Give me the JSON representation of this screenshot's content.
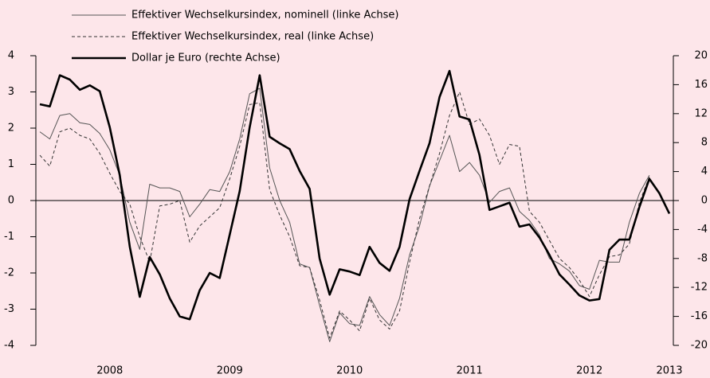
{
  "chart_data": {
    "type": "line",
    "categories": [
      null,
      null,
      null,
      null,
      null,
      null,
      null,
      "2008",
      null,
      null,
      null,
      null,
      null,
      null,
      null,
      null,
      null,
      null,
      null,
      "2009",
      null,
      null,
      null,
      null,
      null,
      null,
      null,
      null,
      null,
      null,
      null,
      "2010",
      null,
      null,
      null,
      null,
      null,
      null,
      null,
      null,
      null,
      null,
      null,
      "2011",
      null,
      null,
      null,
      null,
      null,
      null,
      null,
      null,
      null,
      null,
      null,
      "2012",
      null,
      null,
      null,
      null,
      null,
      null,
      null,
      "2013"
    ],
    "series": [
      {
        "name": "Effektiver Wechselkursindex,  nominell (linke Achse)",
        "color": "#555555",
        "linestyle": "solid",
        "linewidth": 1,
        "axis": "y",
        "values": [
          1.9,
          1.7,
          2.35,
          2.4,
          2.15,
          2.1,
          1.85,
          1.4,
          0.7,
          -0.6,
          -1.35,
          0.45,
          0.35,
          0.35,
          0.25,
          -0.45,
          -0.1,
          0.3,
          0.25,
          0.8,
          1.7,
          2.95,
          3.1,
          0.9,
          0.0,
          -0.6,
          -1.75,
          -1.85,
          -2.9,
          -3.9,
          -3.1,
          -3.4,
          -3.45,
          -2.65,
          -3.15,
          -3.45,
          -2.7,
          -1.5,
          -0.7,
          0.4,
          1.1,
          1.8,
          0.8,
          1.05,
          0.7,
          -0.05,
          0.25,
          0.35,
          -0.3,
          -0.55,
          -0.95,
          -1.6,
          -1.75,
          -1.95,
          -2.35,
          -2.45,
          -1.65,
          -1.7,
          -1.7,
          -0.6,
          0.2,
          0.7,
          null,
          null
        ]
      },
      {
        "name": "Effektiver Wechselkursindex,  real (linke Achse)",
        "color": "#333333",
        "linestyle": "dashed",
        "linewidth": 1,
        "axis": "y",
        "values": [
          1.25,
          0.95,
          1.9,
          2.0,
          1.8,
          1.7,
          1.3,
          0.75,
          0.25,
          -0.1,
          -1.0,
          -1.7,
          -0.15,
          -0.1,
          0.0,
          -1.15,
          -0.7,
          -0.45,
          -0.2,
          0.6,
          1.5,
          2.65,
          2.7,
          0.3,
          -0.4,
          -1.0,
          -1.8,
          -1.85,
          -2.75,
          -3.8,
          -3.05,
          -3.3,
          -3.6,
          -2.7,
          -3.3,
          -3.55,
          -3.05,
          -1.7,
          -0.5,
          0.4,
          1.3,
          2.35,
          3.0,
          2.1,
          2.25,
          1.8,
          1.0,
          1.55,
          1.5,
          -0.3,
          -0.6,
          -1.1,
          -1.6,
          -1.85,
          -2.2,
          -2.65,
          -2.05,
          -1.55,
          -1.5,
          -1.2,
          -0.05,
          0.65,
          null,
          null
        ]
      },
      {
        "name": "Dollar je Euro (rechte Achse)",
        "color": "#000000",
        "linestyle": "solid",
        "linewidth": 2.6,
        "axis": "y2",
        "values": [
          13.3,
          13.0,
          17.3,
          16.7,
          15.3,
          15.9,
          15.1,
          10.1,
          3.5,
          -6.4,
          -13.3,
          -7.8,
          -10.2,
          -13.5,
          -16.0,
          -16.4,
          -12.4,
          -10.0,
          -10.7,
          -4.7,
          1.3,
          10.1,
          17.3,
          8.8,
          7.9,
          7.1,
          4.1,
          1.6,
          -8.0,
          -13.0,
          -9.5,
          -9.8,
          -10.3,
          -6.4,
          -8.6,
          -9.7,
          -6.4,
          0.2,
          4.1,
          7.9,
          14.3,
          17.9,
          11.6,
          11.2,
          6.3,
          -1.3,
          -0.8,
          -0.3,
          -3.6,
          -3.3,
          -5.1,
          -7.5,
          -10.2,
          -11.6,
          -13.1,
          -13.8,
          -13.6,
          -6.8,
          -5.4,
          -5.4,
          -0.9,
          3.0,
          1.0,
          -1.8
        ]
      }
    ],
    "ylim": [
      -4,
      4
    ],
    "yticks": [
      -4,
      -3,
      -2,
      -1,
      0,
      1,
      2,
      3,
      4
    ],
    "y2lim": [
      -20,
      20
    ],
    "y2ticks": [
      -20,
      -16,
      -12,
      -8,
      -4,
      0,
      4,
      8,
      12,
      16,
      20
    ],
    "zero_line": true,
    "legend": "top"
  }
}
